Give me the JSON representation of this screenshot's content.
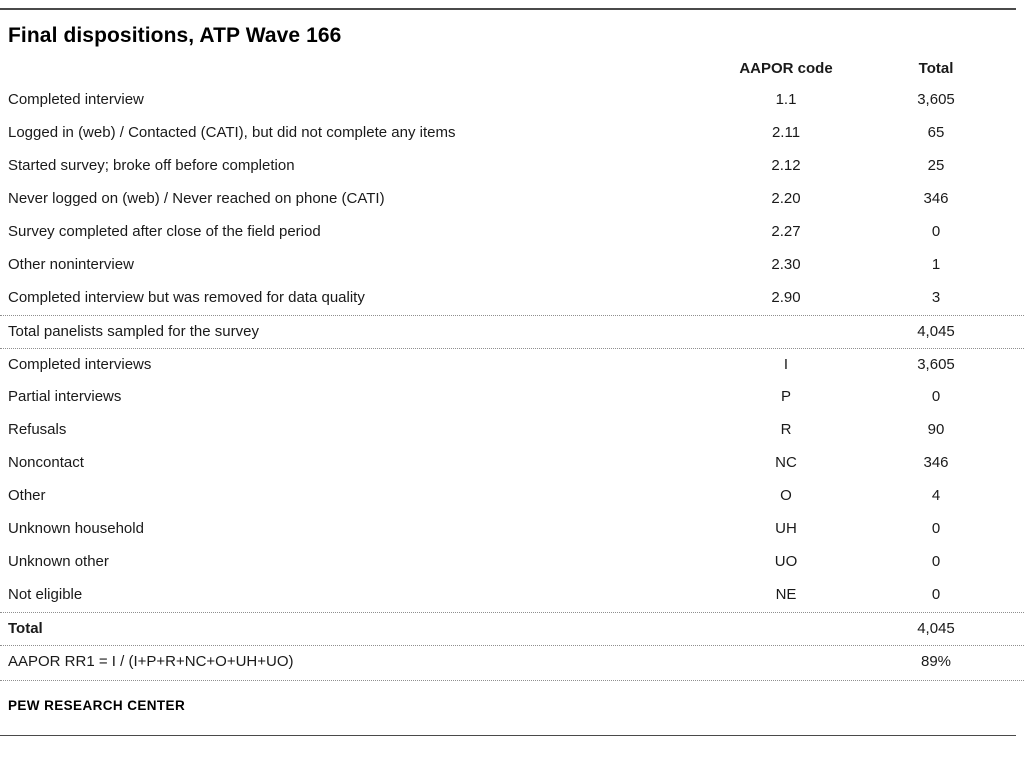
{
  "chart_data": {
    "type": "table",
    "title": "Final dispositions, ATP Wave 166",
    "columns": [
      "",
      "AAPOR code",
      "Total"
    ],
    "rows": [
      [
        "Completed interview",
        "1.1",
        "3,605"
      ],
      [
        "Logged in (web) / Contacted (CATI), but did not complete any items",
        "2.11",
        "65"
      ],
      [
        "Started survey; broke off before completion",
        "2.12",
        "25"
      ],
      [
        "Never logged on (web) / Never reached on phone (CATI)",
        "2.20",
        "346"
      ],
      [
        "Survey completed after close of the field period",
        "2.27",
        "0"
      ],
      [
        "Other noninterview",
        "2.30",
        "1"
      ],
      [
        "Completed interview but was removed for data quality",
        "2.90",
        "3"
      ],
      [
        "Total panelists sampled for the survey",
        "",
        "4,045"
      ],
      [
        "Completed interviews",
        "I",
        "3,605"
      ],
      [
        "Partial interviews",
        "P",
        "0"
      ],
      [
        "Refusals",
        "R",
        "90"
      ],
      [
        "Noncontact",
        "NC",
        "346"
      ],
      [
        "Other",
        "O",
        "4"
      ],
      [
        "Unknown household",
        "UH",
        "0"
      ],
      [
        "Unknown other",
        "UO",
        "0"
      ],
      [
        "Not eligible",
        "NE",
        "0"
      ],
      [
        "Total",
        "",
        "4,045"
      ],
      [
        "AAPOR RR1 = I / (I+P+R+NC+O+UH+UO)",
        "",
        "89%"
      ]
    ]
  },
  "footer": {
    "source": "PEW RESEARCH CENTER"
  }
}
